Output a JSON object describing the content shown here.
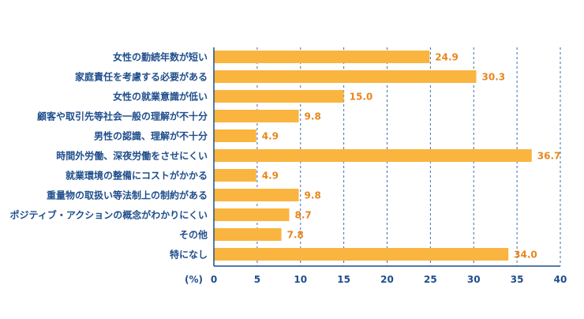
{
  "chart_data": {
    "type": "bar",
    "orientation": "horizontal",
    "categories": [
      "女性の勤続年数が短い",
      "家庭責任を考慮する必要がある",
      "女性の就業意識が低い",
      "顧客や取引先等社会一般の理解が不十分",
      "男性の認識、理解が不十分",
      "時間外労働、深夜労働をさせにくい",
      "就業環境の整備にコストがかかる",
      "重量物の取扱い等法制上の制約がある",
      "ポジティブ・アクションの概念がわかりにくい",
      "その他",
      "特になし"
    ],
    "values": [
      24.9,
      30.3,
      15.0,
      9.8,
      4.9,
      36.7,
      4.9,
      9.8,
      8.7,
      7.8,
      34.0
    ],
    "value_labels": [
      "24.9",
      "30.3",
      "15.0",
      "9.8",
      "4.9",
      "36.7",
      "4.9",
      "9.8",
      "8.7",
      "7.8",
      "34.0"
    ],
    "xlim": [
      0,
      40
    ],
    "xticks": [
      "0",
      "5",
      "10",
      "15",
      "20",
      "25",
      "30",
      "35",
      "40"
    ],
    "xunit": "(%)",
    "grid": "vertical-dashed",
    "colors": {
      "bar": "#F9B53F",
      "value_label": "#E8871E",
      "category_label": "#1F4E8C",
      "axis": "#1F4E8C",
      "grid": "#3A6FB0"
    }
  }
}
